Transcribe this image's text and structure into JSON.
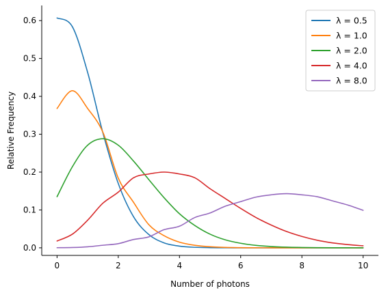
{
  "chart_data": {
    "type": "line",
    "title": "",
    "xlabel": "Number of photons",
    "ylabel": "Relative Frequency",
    "xlim": [
      -0.5,
      10.5
    ],
    "ylim": [
      -0.02,
      0.64
    ],
    "xticks": [
      0,
      2,
      4,
      6,
      8,
      10
    ],
    "xtick_labels": [
      "0",
      "2",
      "4",
      "6",
      "8",
      "10"
    ],
    "yticks": [
      0.0,
      0.1,
      0.2,
      0.3,
      0.4,
      0.5,
      0.6
    ],
    "ytick_labels": [
      "0.0",
      "0.1",
      "0.2",
      "0.3",
      "0.4",
      "0.5",
      "0.6"
    ],
    "grid": false,
    "legend_position": "top-right",
    "x": [
      0,
      0.5,
      1,
      1.5,
      2,
      2.5,
      3,
      3.5,
      4,
      4.5,
      5,
      5.5,
      6,
      6.5,
      7,
      7.5,
      8,
      8.5,
      9,
      9.5,
      10
    ],
    "series": [
      {
        "name": "λ = 0.5",
        "color": "#1f77b4",
        "values": [
          0.607,
          0.584,
          0.463,
          0.303,
          0.17,
          0.082,
          0.035,
          0.013,
          0.0045,
          0.0014,
          0.0004,
          0.0001,
          0.0,
          0.0,
          0.0,
          0.0,
          0.0,
          0.0,
          0.0,
          0.0,
          0.0
        ]
      },
      {
        "name": "λ = 1.0",
        "color": "#ff7f0e",
        "values": [
          0.368,
          0.415,
          0.368,
          0.305,
          0.184,
          0.12,
          0.061,
          0.032,
          0.015,
          0.0067,
          0.0028,
          0.0011,
          0.0004,
          0.0001,
          0.0,
          0.0,
          0.0,
          0.0,
          0.0,
          0.0,
          0.0
        ]
      },
      {
        "name": "λ = 2.0",
        "color": "#2ca02c",
        "values": [
          0.135,
          0.214,
          0.271,
          0.288,
          0.271,
          0.229,
          0.18,
          0.132,
          0.09,
          0.059,
          0.036,
          0.021,
          0.012,
          0.0065,
          0.0034,
          0.0017,
          0.0009,
          0.0004,
          0.0002,
          0.0001,
          0.0
        ]
      },
      {
        "name": "λ = 4.0",
        "color": "#d62728",
        "values": [
          0.018,
          0.036,
          0.073,
          0.118,
          0.147,
          0.185,
          0.195,
          0.2,
          0.195,
          0.185,
          0.156,
          0.13,
          0.104,
          0.08,
          0.06,
          0.043,
          0.03,
          0.02,
          0.013,
          0.0085,
          0.0053
        ]
      },
      {
        "name": "λ = 8.0",
        "color": "#9467bd",
        "values": [
          0.0003,
          0.0008,
          0.0027,
          0.0068,
          0.011,
          0.022,
          0.029,
          0.048,
          0.057,
          0.08,
          0.092,
          0.11,
          0.122,
          0.134,
          0.14,
          0.143,
          0.14,
          0.135,
          0.124,
          0.113,
          0.099
        ]
      }
    ]
  }
}
